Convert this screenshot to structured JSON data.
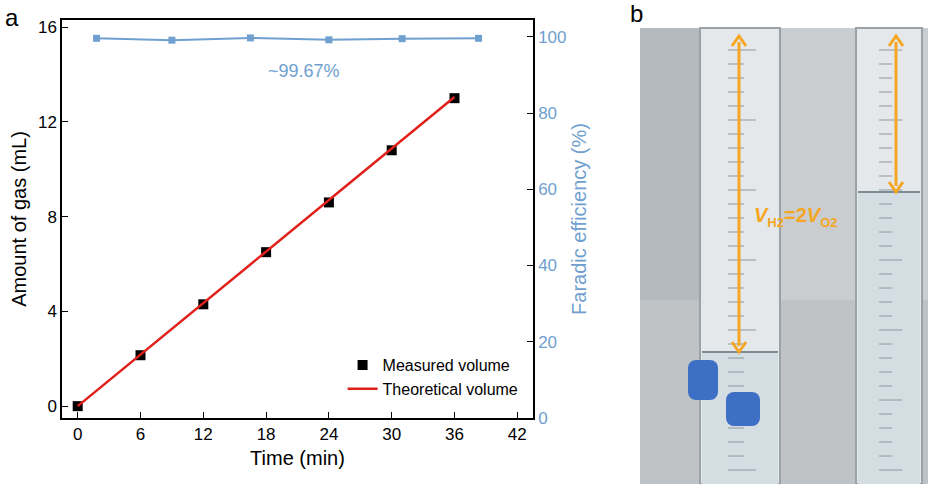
{
  "chart_data": {
    "type": "scatter",
    "panel_label": "a",
    "xlabel": "Time (min)",
    "ylabel": "Amount of gas (mL)",
    "y2label": "Faradic efficiency (%)",
    "xlim": [
      -1.5,
      43.5
    ],
    "xticks": [
      0,
      6,
      12,
      18,
      24,
      30,
      36,
      42
    ],
    "ylim": [
      -0.5,
      16.3
    ],
    "yticks": [
      0,
      4,
      8,
      12,
      16
    ],
    "y2lim": [
      0,
      104.4
    ],
    "y2ticks": [
      0,
      20,
      40,
      60,
      80,
      100
    ],
    "legend": "lower right",
    "series": [
      {
        "name": "Measured volume",
        "type": "scatter",
        "marker": "square",
        "color": "#000000",
        "x": [
          0,
          6,
          12,
          18,
          24,
          30,
          36
        ],
        "values": [
          0,
          2.15,
          4.3,
          6.5,
          8.6,
          10.8,
          13.0
        ]
      },
      {
        "name": "Theoretical volume",
        "type": "line",
        "color": "#e0201b",
        "x": [
          0,
          36
        ],
        "values": [
          0,
          13.05
        ]
      },
      {
        "type": "line",
        "marker": "square",
        "color": "#6fa0cf",
        "axis": "y2",
        "x": [
          1.8,
          9,
          16.5,
          24,
          31,
          38.3
        ],
        "values": [
          99.6,
          99.1,
          99.7,
          99.2,
          99.5,
          99.6
        ]
      }
    ],
    "annotations": [
      {
        "text": "~99.67%",
        "x": 18,
        "y": 91,
        "axis": "y2"
      }
    ]
  },
  "photo": {
    "panel_label": "b",
    "label_parts": [
      {
        "text": "V",
        "italic": true
      },
      {
        "text": "H2",
        "sub": true
      },
      {
        "text": "=2"
      },
      {
        "text": "V",
        "italic": true
      },
      {
        "text": "O2",
        "sub": true
      }
    ]
  }
}
